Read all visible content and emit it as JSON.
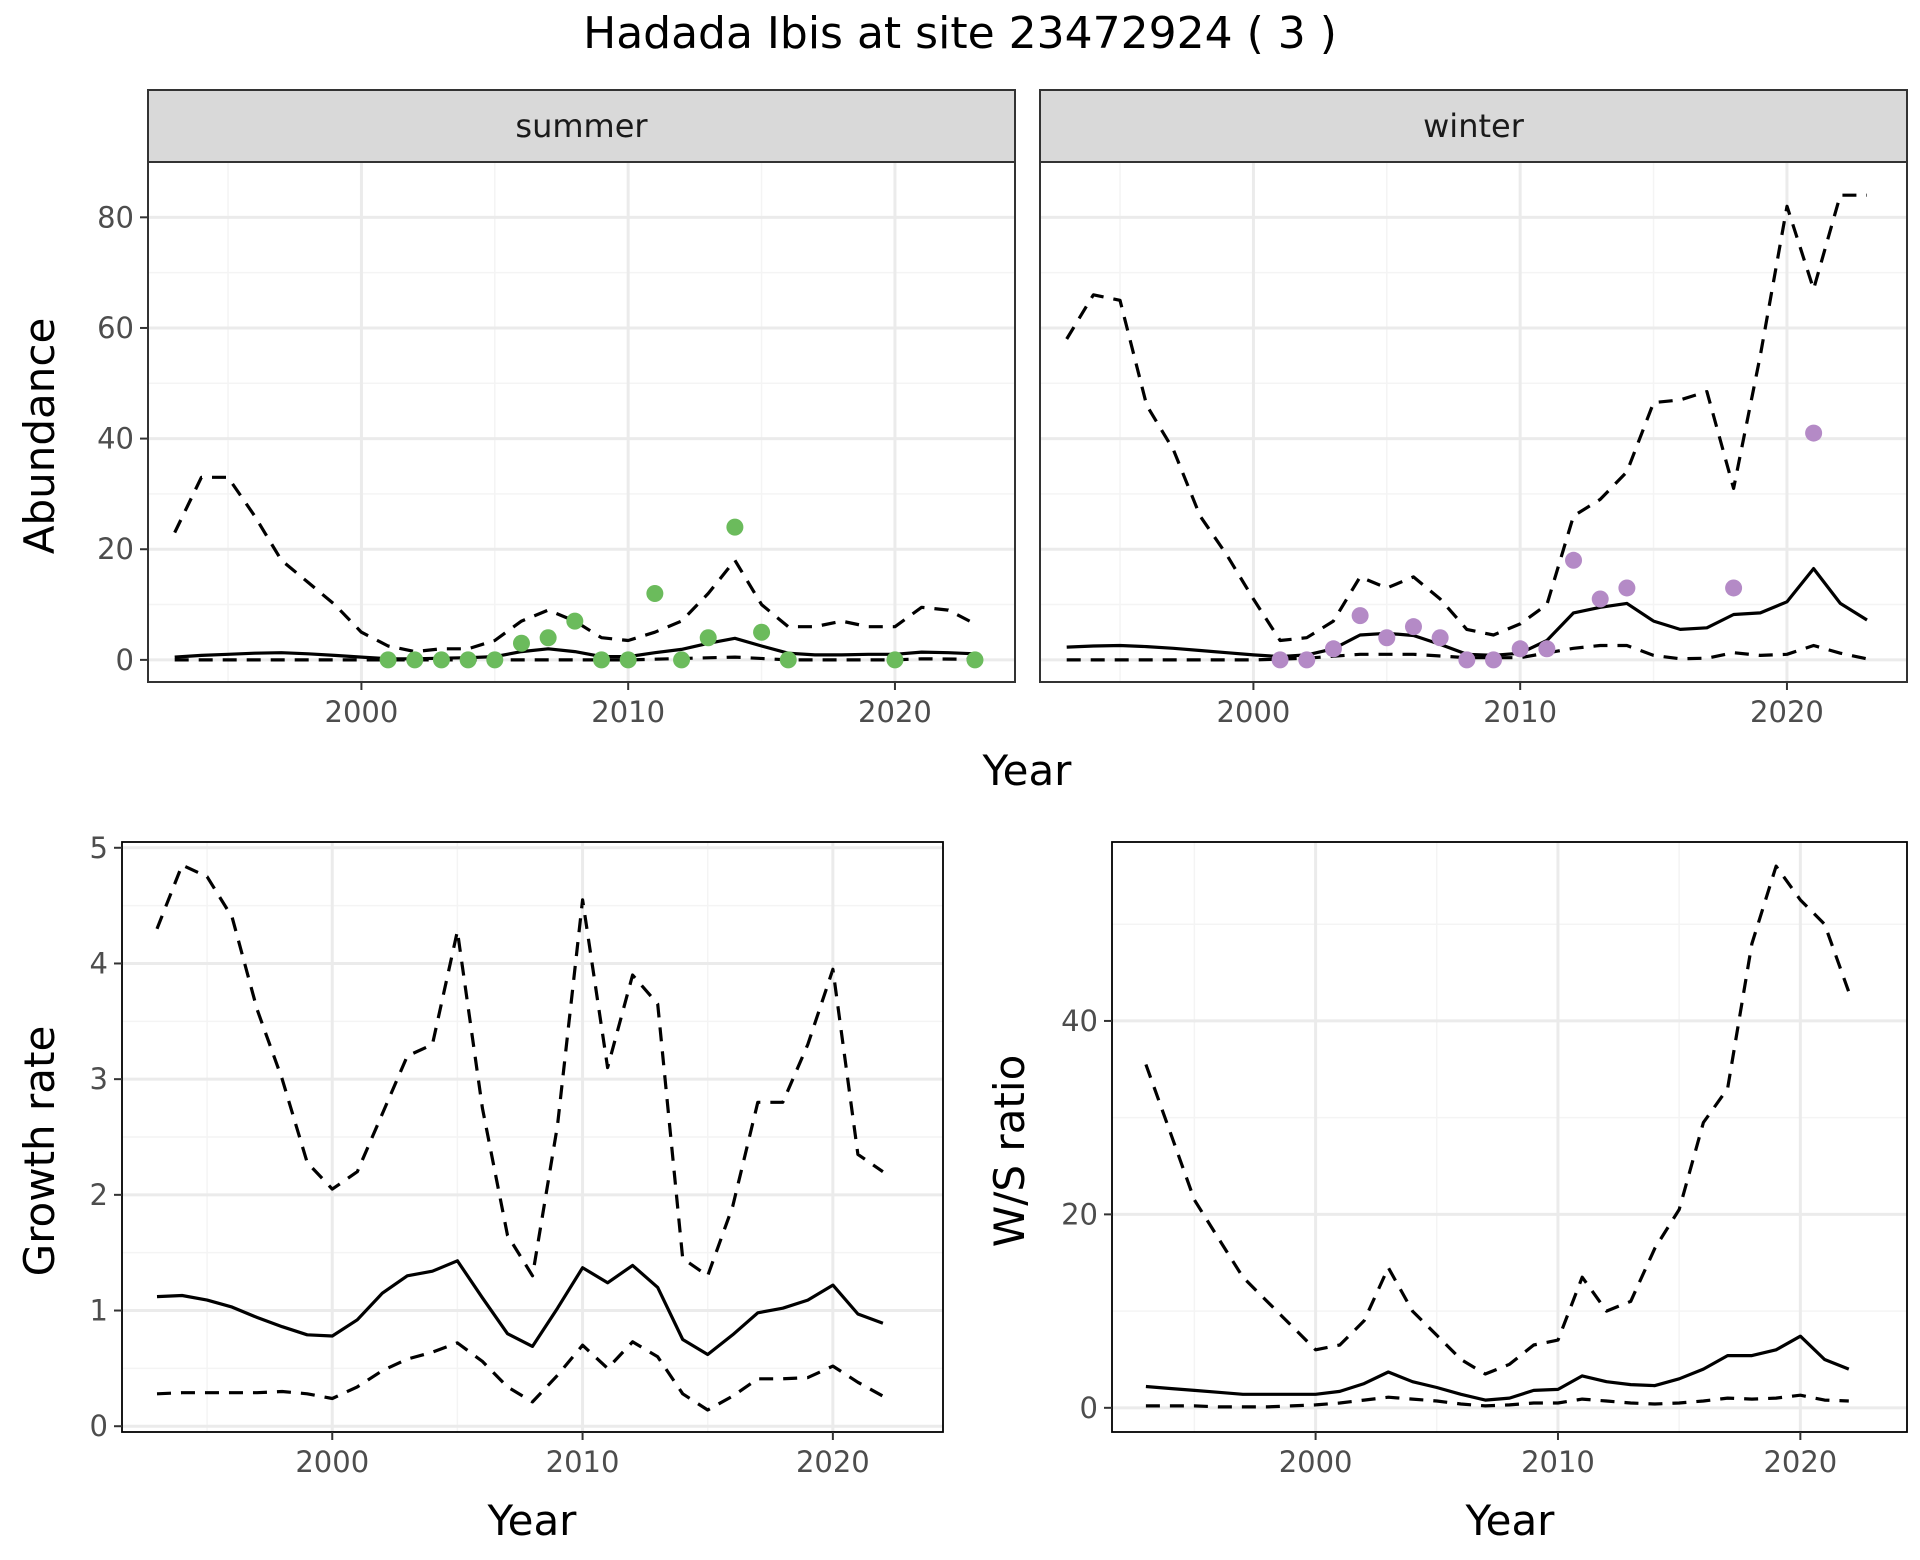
{
  "title": "Hadada Ibis at site 23472924 ( 3 )",
  "colors": {
    "summer": "#6BBB5C",
    "winter": "#B48AC6",
    "line": "#000000",
    "grid_major": "#EBEBEB",
    "grid_minor": "#F4F4F4",
    "strip_fill": "#D9D9D9",
    "panel_border": "#333333"
  },
  "chart_data": [
    {
      "type": "line",
      "facet": "summer",
      "xlabel": "Year",
      "ylabel": "Abundance",
      "xlim": [
        1992,
        2024.5
      ],
      "ylim": [
        -4,
        90
      ],
      "xticks": [
        2000,
        2010,
        2020
      ],
      "yticks": [
        0,
        20,
        40,
        60,
        80
      ],
      "grid": true,
      "series": [
        {
          "style": "solid",
          "x": [
            1993,
            1994,
            1995,
            1996,
            1997,
            1998,
            1999,
            2000,
            2001,
            2002,
            2003,
            2004,
            2005,
            2006,
            2007,
            2008,
            2009,
            2010,
            2011,
            2012,
            2013,
            2014,
            2015,
            2016,
            2017,
            2018,
            2019,
            2020,
            2021,
            2022,
            2023
          ],
          "values": [
            0.5,
            0.8,
            1.0,
            1.2,
            1.3,
            1.1,
            0.8,
            0.5,
            0.2,
            0.2,
            0.3,
            0.4,
            0.6,
            1.5,
            2.0,
            1.5,
            0.6,
            0.6,
            1.3,
            1.9,
            3.0,
            3.9,
            2.5,
            1.2,
            0.9,
            0.9,
            1.0,
            1.0,
            1.4,
            1.3,
            1.1
          ]
        },
        {
          "style": "dashed",
          "x": [
            1993,
            1994,
            1995,
            1996,
            1997,
            1998,
            1999,
            2000,
            2001,
            2002,
            2003,
            2004,
            2005,
            2006,
            2007,
            2008,
            2009,
            2010,
            2011,
            2012,
            2013,
            2014,
            2015,
            2016,
            2017,
            2018,
            2019,
            2020,
            2021,
            2022,
            2023
          ],
          "values": [
            23,
            33,
            33,
            26,
            18,
            14,
            10,
            5,
            2.5,
            1.5,
            2.0,
            2.0,
            3.5,
            7,
            9,
            7,
            4,
            3.5,
            5,
            7,
            12,
            18,
            10,
            6,
            6,
            7,
            6,
            6,
            9.5,
            9,
            6.5
          ]
        },
        {
          "style": "dashed",
          "x": [
            1993,
            2005,
            2010,
            2014,
            2016,
            2020,
            2021,
            2023
          ],
          "values": [
            0,
            0,
            0,
            0.5,
            0,
            0,
            0.2,
            0.1
          ]
        }
      ],
      "points": {
        "x": [
          2001,
          2002,
          2003,
          2004,
          2005,
          2006,
          2007,
          2008,
          2009,
          2010,
          2011,
          2012,
          2013,
          2014,
          2015,
          2016,
          2020,
          2023
        ],
        "values": [
          0,
          0,
          0,
          0,
          0,
          3,
          4,
          7,
          0,
          0,
          12,
          0,
          4,
          24,
          5,
          0,
          0,
          0
        ]
      }
    },
    {
      "type": "line",
      "facet": "winter",
      "xlabel": "Year",
      "ylabel": "Abundance",
      "xlim": [
        1992,
        2024.5
      ],
      "ylim": [
        -4,
        90
      ],
      "xticks": [
        2000,
        2010,
        2020
      ],
      "yticks": [
        0,
        20,
        40,
        60,
        80
      ],
      "grid": true,
      "series": [
        {
          "style": "solid",
          "x": [
            1993,
            1994,
            1995,
            1996,
            1997,
            1998,
            1999,
            2000,
            2001,
            2002,
            2003,
            2004,
            2005,
            2006,
            2007,
            2008,
            2009,
            2010,
            2011,
            2012,
            2013,
            2014,
            2015,
            2016,
            2017,
            2018,
            2019,
            2020,
            2021,
            2022,
            2023
          ],
          "values": [
            2.3,
            2.5,
            2.6,
            2.4,
            2.1,
            1.7,
            1.3,
            0.9,
            0.6,
            0.9,
            2.0,
            4.5,
            4.8,
            4.4,
            2.8,
            1.0,
            0.8,
            1.2,
            3.5,
            8.5,
            9.5,
            10.2,
            7.0,
            5.5,
            5.8,
            8.2,
            8.5,
            10.5,
            16.5,
            10.2,
            7.2
          ]
        },
        {
          "style": "dashed",
          "x": [
            1993,
            1994,
            1995,
            1996,
            1997,
            1998,
            1999,
            2000,
            2001,
            2002,
            2003,
            2004,
            2005,
            2006,
            2007,
            2008,
            2009,
            2010,
            2011,
            2012,
            2013,
            2014,
            2015,
            2016,
            2017,
            2018,
            2019,
            2020,
            2021,
            2022,
            2023
          ],
          "values": [
            58,
            66,
            65,
            46,
            38,
            26,
            19,
            11,
            3.5,
            4,
            7,
            15,
            13,
            15,
            11,
            5.5,
            4.5,
            6.5,
            10,
            26,
            29,
            34,
            46.5,
            47,
            48.5,
            31,
            55,
            82,
            67,
            84,
            84
          ]
        },
        {
          "style": "dashed",
          "x": [
            1993,
            2000,
            2002,
            2004,
            2006,
            2008,
            2010,
            2012,
            2013,
            2014,
            2015,
            2016,
            2017,
            2018,
            2019,
            2020,
            2021,
            2022,
            2023
          ],
          "values": [
            0,
            0,
            0.3,
            1.0,
            1.0,
            0.4,
            0.4,
            2.1,
            2.6,
            2.6,
            0.8,
            0.2,
            0.3,
            1.3,
            0.8,
            1.0,
            2.6,
            1.2,
            0.2
          ]
        }
      ],
      "points": {
        "x": [
          2001,
          2002,
          2003,
          2004,
          2005,
          2006,
          2007,
          2008,
          2009,
          2010,
          2011,
          2012,
          2013,
          2014,
          2018,
          2021
        ],
        "values": [
          0,
          0,
          2,
          8,
          4,
          6,
          4,
          0,
          0,
          2,
          2,
          18,
          11,
          13,
          13,
          41
        ]
      }
    },
    {
      "type": "line",
      "facet": "growth",
      "xlabel": "Year",
      "ylabel": "Growth rate",
      "xlim": [
        1991.6,
        2024.4
      ],
      "ylim": [
        -0.05,
        5.05
      ],
      "xticks": [
        2000,
        2010,
        2020
      ],
      "yticks": [
        0,
        1,
        2,
        3,
        4,
        5
      ],
      "grid": true,
      "series": [
        {
          "style": "solid",
          "x": [
            1993,
            1994,
            1995,
            1996,
            1997,
            1998,
            1999,
            2000,
            2001,
            2002,
            2003,
            2004,
            2005,
            2006,
            2007,
            2008,
            2009,
            2010,
            2011,
            2012,
            2013,
            2014,
            2015,
            2016,
            2017,
            2018,
            2019,
            2020,
            2021,
            2022
          ],
          "values": [
            1.12,
            1.13,
            1.09,
            1.03,
            0.94,
            0.86,
            0.79,
            0.78,
            0.92,
            1.15,
            1.3,
            1.34,
            1.43,
            1.11,
            0.8,
            0.69,
            1.02,
            1.37,
            1.24,
            1.39,
            1.2,
            0.75,
            0.62,
            0.79,
            0.98,
            1.02,
            1.09,
            1.22,
            0.97,
            0.89
          ]
        },
        {
          "style": "dashed",
          "x": [
            1993,
            1994,
            1995,
            1996,
            1997,
            1998,
            1999,
            2000,
            2001,
            2002,
            2003,
            2004,
            2005,
            2006,
            2007,
            2008,
            2009,
            2010,
            2011,
            2012,
            2013,
            2014,
            2015,
            2016,
            2017,
            2018,
            2019,
            2020,
            2021,
            2022
          ],
          "values": [
            4.3,
            4.85,
            4.75,
            4.4,
            3.6,
            3.0,
            2.28,
            2.05,
            2.2,
            2.7,
            3.2,
            3.3,
            4.28,
            2.75,
            1.65,
            1.3,
            2.6,
            4.55,
            3.1,
            3.9,
            3.65,
            1.45,
            1.3,
            1.9,
            2.8,
            2.8,
            3.3,
            3.95,
            2.35,
            2.2
          ]
        },
        {
          "style": "dashed",
          "x": [
            1993,
            1994,
            1995,
            1996,
            1997,
            1998,
            1999,
            2000,
            2001,
            2002,
            2003,
            2004,
            2005,
            2006,
            2007,
            2008,
            2009,
            2010,
            2011,
            2012,
            2013,
            2014,
            2015,
            2016,
            2017,
            2018,
            2019,
            2020,
            2021,
            2022
          ],
          "values": [
            0.28,
            0.29,
            0.29,
            0.29,
            0.29,
            0.3,
            0.28,
            0.24,
            0.34,
            0.48,
            0.58,
            0.64,
            0.72,
            0.56,
            0.34,
            0.21,
            0.44,
            0.7,
            0.5,
            0.73,
            0.6,
            0.28,
            0.14,
            0.26,
            0.41,
            0.41,
            0.42,
            0.52,
            0.38,
            0.26
          ]
        }
      ]
    },
    {
      "type": "line",
      "facet": "ratio",
      "xlabel": "Year",
      "ylabel": "W/S ratio",
      "xlim": [
        1991.6,
        2024.4
      ],
      "ylim": [
        -2.5,
        58.5
      ],
      "xticks": [
        2000,
        2010,
        2020
      ],
      "yticks": [
        0,
        20,
        40
      ],
      "grid": true,
      "series": [
        {
          "style": "solid",
          "x": [
            1993,
            1994,
            1995,
            1996,
            1997,
            1998,
            1999,
            2000,
            2001,
            2002,
            2003,
            2004,
            2005,
            2006,
            2007,
            2008,
            2009,
            2010,
            2011,
            2012,
            2013,
            2014,
            2015,
            2016,
            2017,
            2018,
            2019,
            2020,
            2021,
            2022
          ],
          "values": [
            2.2,
            2.0,
            1.8,
            1.6,
            1.4,
            1.4,
            1.4,
            1.4,
            1.7,
            2.5,
            3.7,
            2.7,
            2.1,
            1.4,
            0.8,
            1.0,
            1.8,
            1.9,
            3.3,
            2.7,
            2.4,
            2.3,
            3.0,
            4.0,
            5.4,
            5.4,
            6.0,
            7.4,
            5.0,
            4.0
          ]
        },
        {
          "style": "dashed",
          "x": [
            1993,
            1994,
            1995,
            1996,
            1997,
            1998,
            1999,
            2000,
            2001,
            2002,
            2003,
            2004,
            2005,
            2006,
            2007,
            2008,
            2009,
            2010,
            2011,
            2012,
            2013,
            2014,
            2015,
            2016,
            2017,
            2018,
            2019,
            2020,
            2021,
            2022
          ],
          "values": [
            35.5,
            28.5,
            21.5,
            17.5,
            13.5,
            11.0,
            8.5,
            6.0,
            6.5,
            9.0,
            14.5,
            10.0,
            7.5,
            5.0,
            3.5,
            4.5,
            6.5,
            7.0,
            13.5,
            10.0,
            11.0,
            16.5,
            20.5,
            29.5,
            33.0,
            48.0,
            56.0,
            52.5,
            50.0,
            43.0
          ]
        },
        {
          "style": "dashed",
          "x": [
            1993,
            1994,
            1995,
            1996,
            1997,
            1998,
            1999,
            2000,
            2001,
            2002,
            2003,
            2004,
            2005,
            2006,
            2007,
            2008,
            2009,
            2010,
            2011,
            2012,
            2013,
            2014,
            2015,
            2016,
            2017,
            2018,
            2019,
            2020,
            2021,
            2022
          ],
          "values": [
            0.2,
            0.2,
            0.2,
            0.1,
            0.1,
            0.1,
            0.2,
            0.3,
            0.5,
            0.8,
            1.1,
            0.9,
            0.7,
            0.4,
            0.2,
            0.3,
            0.5,
            0.5,
            0.9,
            0.7,
            0.5,
            0.4,
            0.5,
            0.7,
            1.0,
            0.9,
            1.0,
            1.3,
            0.8,
            0.7
          ]
        }
      ]
    }
  ]
}
